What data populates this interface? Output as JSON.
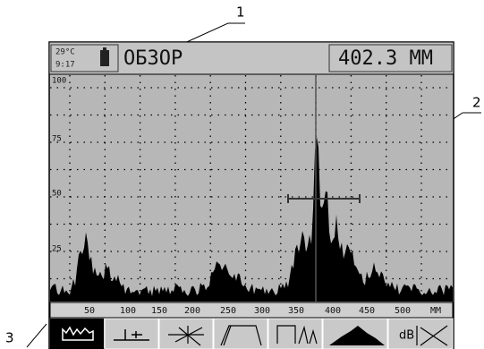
{
  "callouts": [
    "1",
    "2",
    "3"
  ],
  "header": {
    "temperature": "29°C",
    "time": "9:17",
    "mode": "ОБЗОР",
    "reading": "402.3 ММ"
  },
  "plot": {
    "y_labels": [
      "100",
      "75",
      "50",
      "25"
    ],
    "x_labels": [
      "50",
      "100",
      "150",
      "200",
      "250",
      "300",
      "350",
      "400",
      "450",
      "500",
      "MM"
    ]
  },
  "toolbar": {
    "last_button": "dB"
  }
}
